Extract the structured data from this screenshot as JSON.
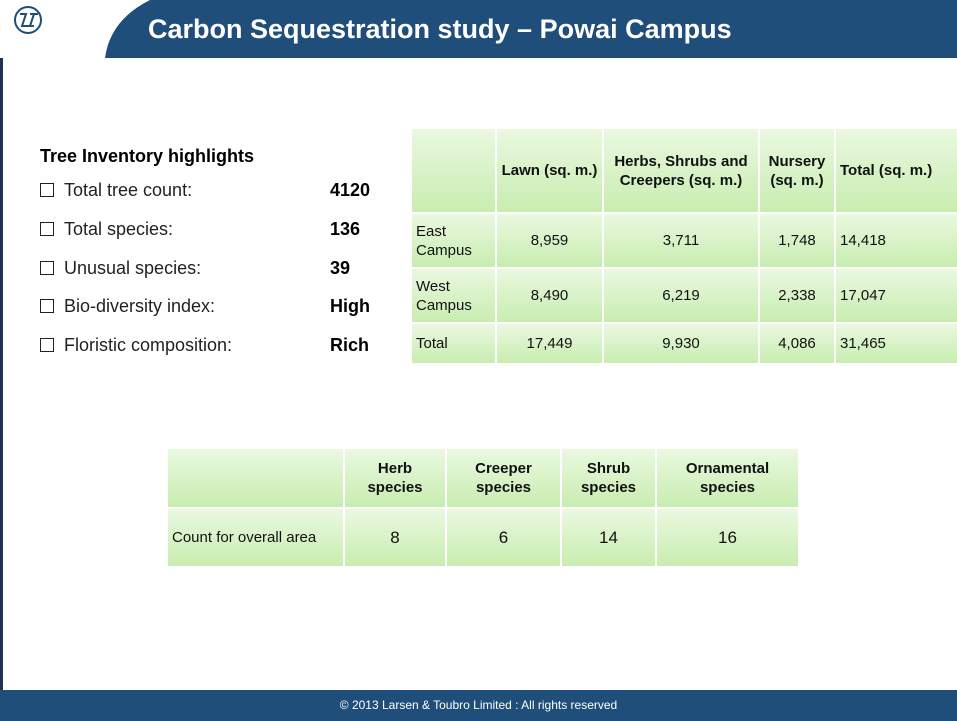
{
  "header": {
    "title": "Carbon Sequestration study – Powai Campus"
  },
  "highlights": {
    "title": "Tree Inventory highlights",
    "items": [
      {
        "label": "Total tree count:",
        "value": "4120"
      },
      {
        "label": "Total species:",
        "value": "136"
      },
      {
        "label": "Unusual species:",
        "value": "39"
      },
      {
        "label": "Bio-diversity index:",
        "value": "High"
      },
      {
        "label": "Floristic composition:",
        "value": "Rich"
      }
    ]
  },
  "area_table": {
    "columns": [
      "Lawn (sq. m.)",
      "Herbs, Shrubs and Creepers (sq. m.)",
      "Nursery (sq. m.)",
      "Total (sq. m.)"
    ],
    "rows": [
      {
        "label": "East Campus",
        "cells": [
          "8,959",
          "3,711",
          "1,748",
          "14,418"
        ]
      },
      {
        "label": "West Campus",
        "cells": [
          "8,490",
          "6,219",
          "2,338",
          "17,047"
        ]
      },
      {
        "label": "Total",
        "cells": [
          "17,449",
          "9,930",
          "4,086",
          "31,465"
        ]
      }
    ]
  },
  "species_table": {
    "columns": [
      "Herb species",
      "Creeper species",
      "Shrub species",
      "Ornamental species"
    ],
    "rows": [
      {
        "label": "Count for overall area",
        "cells": [
          "8",
          "6",
          "14",
          "16"
        ]
      }
    ]
  },
  "footer": {
    "text": "© 2013 Larsen & Toubro Limited : All rights reserved"
  }
}
